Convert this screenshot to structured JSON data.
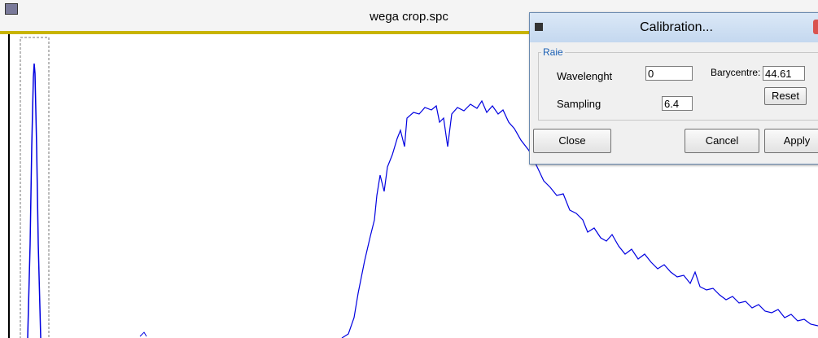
{
  "window": {
    "title": "wega crop.spc"
  },
  "dialog": {
    "title": "Calibration...",
    "group": "Raie",
    "fields": {
      "wavelength_label": "Wavelenght",
      "wavelength_value": "0",
      "barycentre_label": "Barycentre:",
      "barycentre_value": "44.61",
      "sampling_label": "Sampling",
      "sampling_value": "6.4"
    },
    "buttons": {
      "reset": "Reset",
      "close": "Close",
      "cancel": "Cancel",
      "apply": "Apply"
    }
  }
}
